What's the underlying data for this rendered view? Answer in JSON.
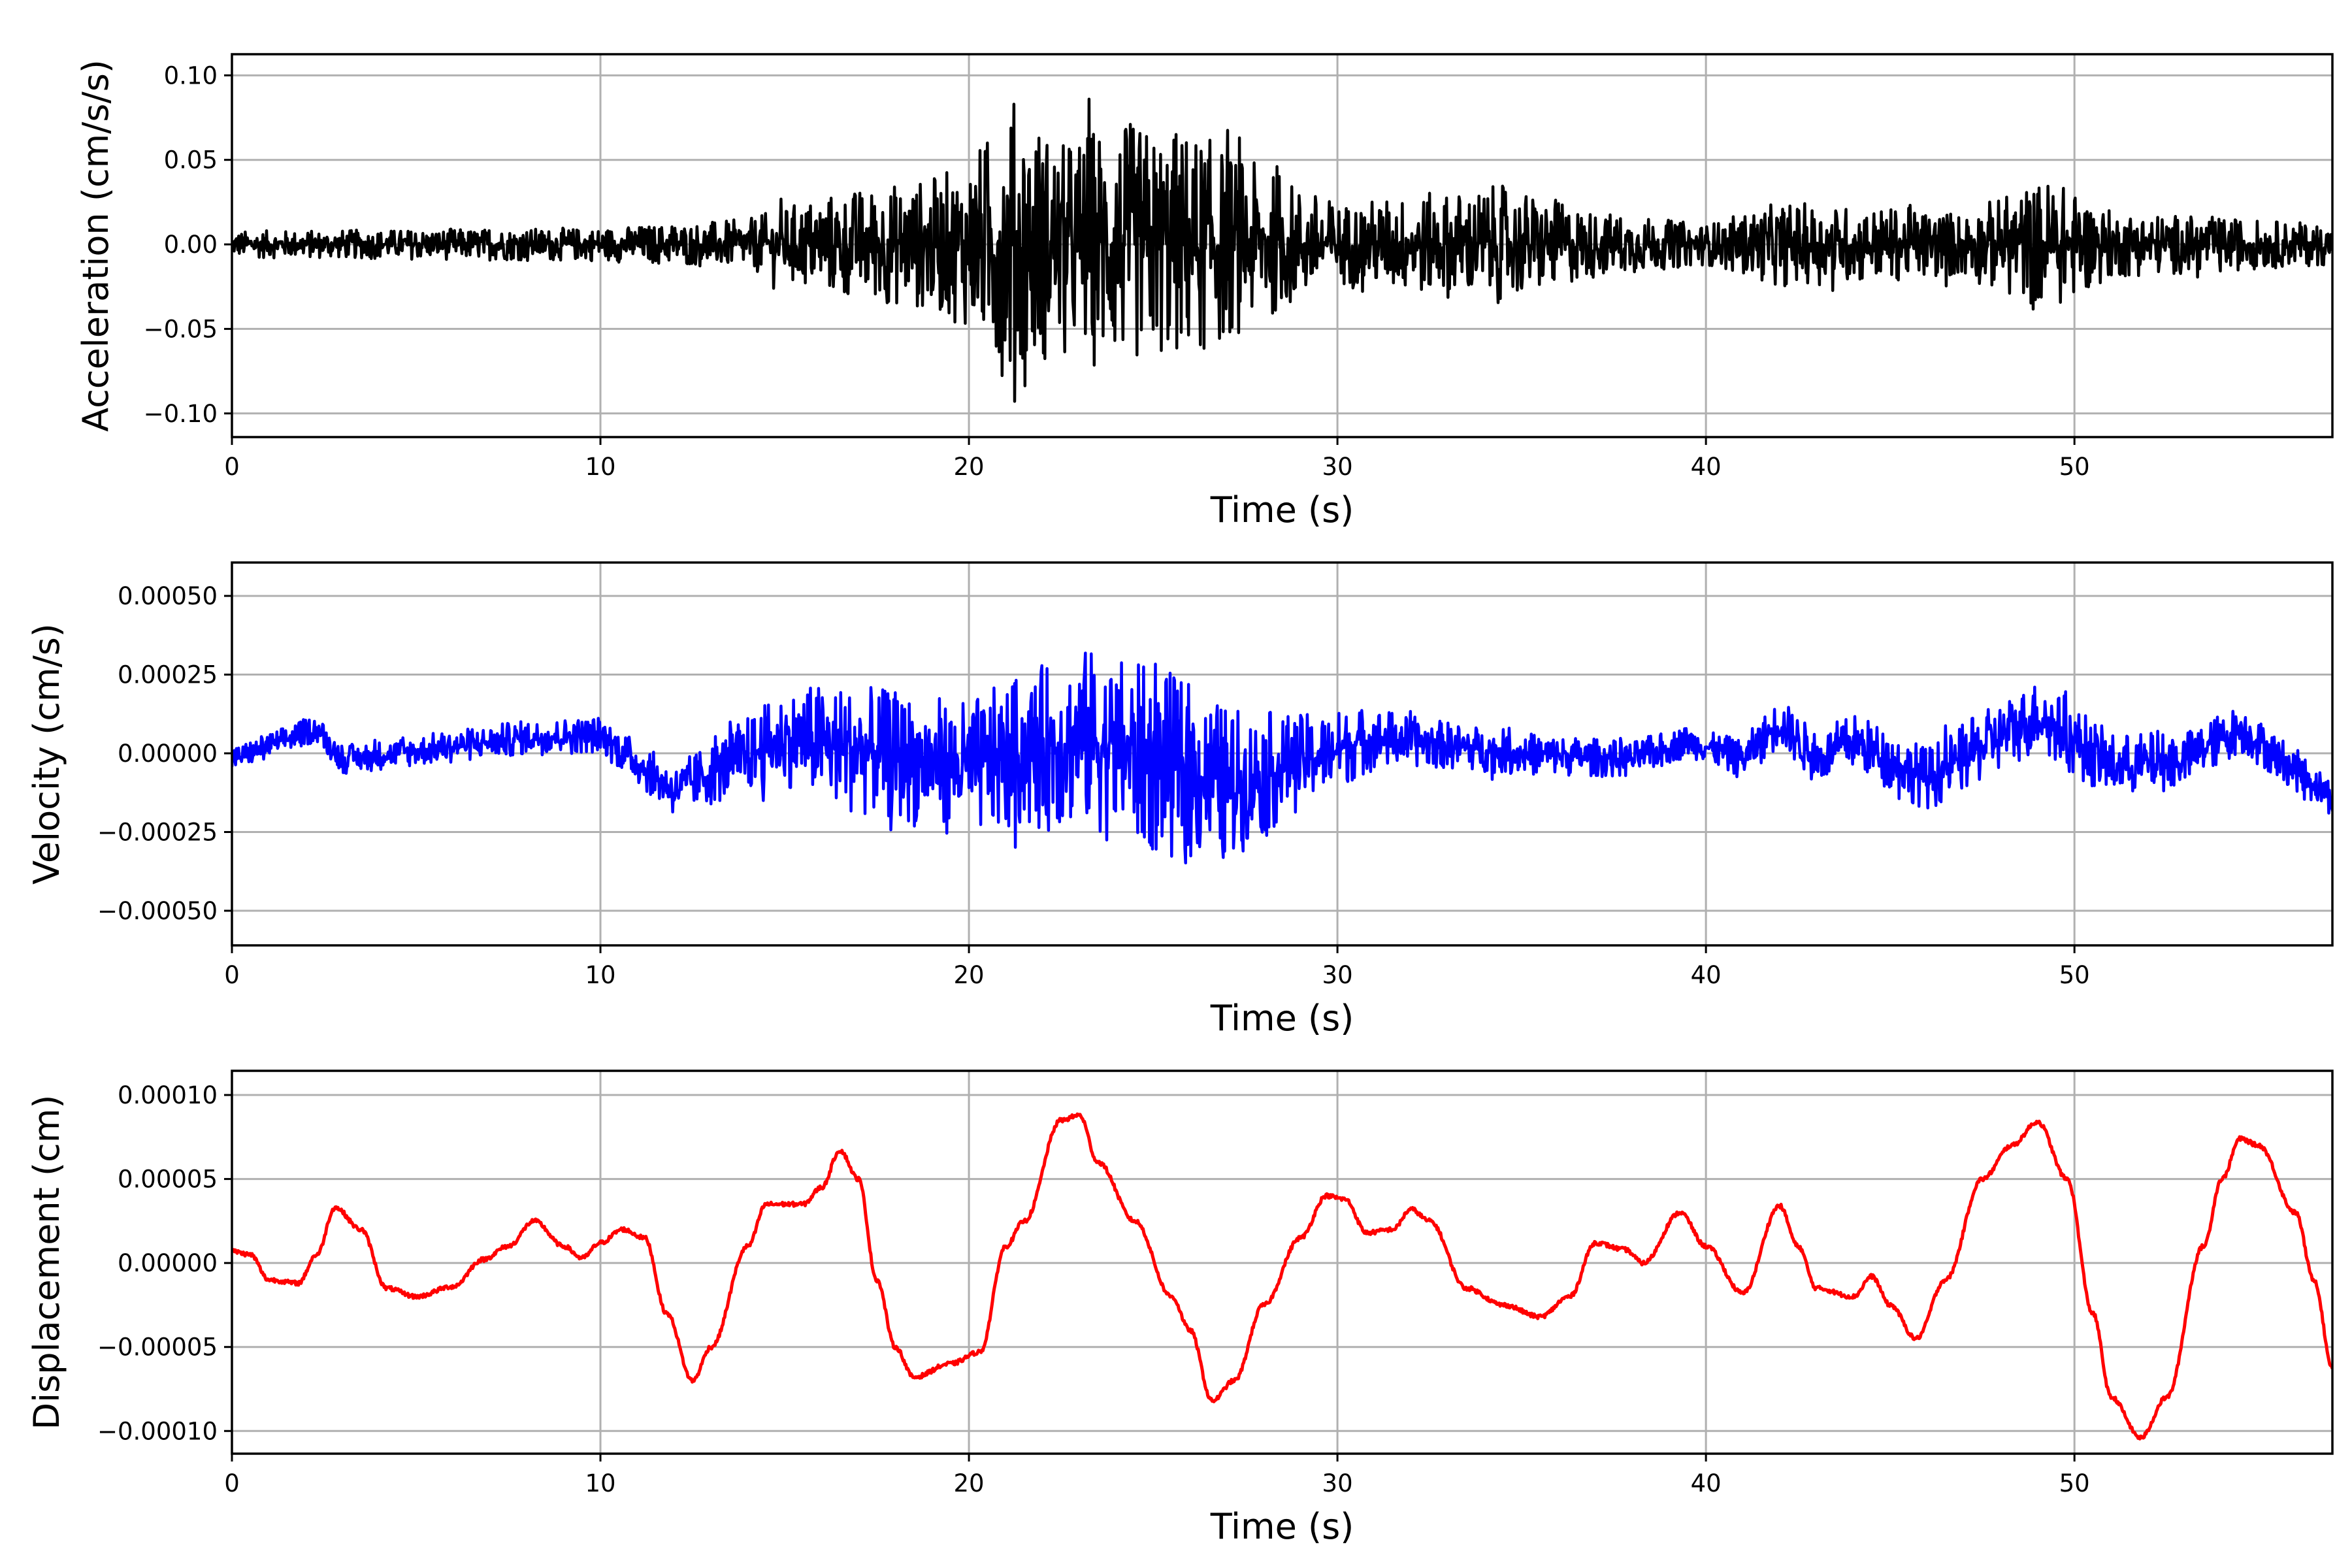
{
  "chart_data": [
    {
      "type": "line",
      "title": "",
      "xlabel": "Time (s)",
      "ylabel": "Acceleration (cm/s/s)",
      "xlim": [
        0,
        57
      ],
      "ylim": [
        -0.114,
        0.1125
      ],
      "grid": true,
      "xticks": [
        0,
        10,
        20,
        30,
        40,
        50
      ],
      "xtick_labels": [
        "0",
        "10",
        "20",
        "30",
        "40",
        "50"
      ],
      "yticks": [
        -0.1,
        -0.05,
        0.0,
        0.05,
        0.1
      ],
      "ytick_labels": [
        "−0.10",
        "−0.05",
        "0.00",
        "0.05",
        "0.10"
      ],
      "color": "#000000",
      "series_name": "acceleration",
      "description_of_values": "dense oscillating record; amplitude envelope (t, peak) approximated",
      "baseline": [
        [
          0,
          0
        ],
        [
          57,
          0
        ]
      ],
      "envelope": [
        [
          0,
          0.008
        ],
        [
          10,
          0.01
        ],
        [
          14,
          0.015
        ],
        [
          16,
          0.03
        ],
        [
          19,
          0.04
        ],
        [
          20,
          0.05
        ],
        [
          21.3,
          0.09
        ],
        [
          22.5,
          0.06
        ],
        [
          23.5,
          0.075
        ],
        [
          25,
          0.07
        ],
        [
          26,
          0.07
        ],
        [
          28,
          0.045
        ],
        [
          30,
          0.025
        ],
        [
          34.5,
          0.035
        ],
        [
          37,
          0.02
        ],
        [
          40,
          0.012
        ],
        [
          42,
          0.025
        ],
        [
          47,
          0.02
        ],
        [
          49.3,
          0.04
        ],
        [
          51,
          0.02
        ],
        [
          57,
          0.012
        ]
      ]
    },
    {
      "type": "line",
      "title": "",
      "xlabel": "Time (s)",
      "ylabel": "Velocity (cm/s)",
      "xlim": [
        0,
        57
      ],
      "ylim": [
        -0.00061,
        0.000606
      ],
      "grid": true,
      "xticks": [
        0,
        10,
        20,
        30,
        40,
        50
      ],
      "xtick_labels": [
        "0",
        "10",
        "20",
        "30",
        "40",
        "50"
      ],
      "yticks": [
        -0.0005,
        -0.00025,
        0.0,
        0.00025,
        0.0005
      ],
      "ytick_labels": [
        "−0.00050",
        "−0.00025",
        "0.00000",
        "0.00025",
        "0.00050"
      ],
      "color": "#0000ff",
      "series_name": "velocity",
      "baseline": [
        [
          0,
          -2e-05
        ],
        [
          2.3,
          8e-05
        ],
        [
          3,
          -2e-05
        ],
        [
          8,
          5e-05
        ],
        [
          10,
          6e-05
        ],
        [
          12,
          -0.00012
        ],
        [
          15,
          5e-05
        ],
        [
          20,
          -5e-05
        ],
        [
          23,
          5e-05
        ],
        [
          27,
          -0.0001
        ],
        [
          31,
          5e-05
        ],
        [
          35,
          0
        ],
        [
          38,
          -2e-05
        ],
        [
          39.5,
          4e-05
        ],
        [
          41,
          -2e-05
        ],
        [
          42,
          0.0001
        ],
        [
          43,
          -2e-05
        ],
        [
          44,
          4e-05
        ],
        [
          46,
          -8e-05
        ],
        [
          49,
          0.00012
        ],
        [
          51,
          -4e-05
        ],
        [
          53,
          -2e-05
        ],
        [
          54.5,
          8e-05
        ],
        [
          57,
          -0.00014
        ]
      ],
      "envelope": [
        [
          0,
          4e-05
        ],
        [
          10,
          6e-05
        ],
        [
          12,
          8e-05
        ],
        [
          15,
          0.00015
        ],
        [
          16,
          0.0002
        ],
        [
          20,
          0.00022
        ],
        [
          23.5,
          0.0003
        ],
        [
          26,
          0.0003
        ],
        [
          29,
          0.00015
        ],
        [
          32,
          8e-05
        ],
        [
          40,
          5e-05
        ],
        [
          42,
          8e-05
        ],
        [
          49,
          0.00012
        ],
        [
          57,
          6e-05
        ]
      ]
    },
    {
      "type": "line",
      "title": "",
      "xlabel": "Time (s)",
      "ylabel": "Displacement (cm)",
      "xlim": [
        0,
        57
      ],
      "ylim": [
        -0.0001135,
        0.0001144
      ],
      "grid": true,
      "xticks": [
        0,
        10,
        20,
        30,
        40,
        50
      ],
      "xtick_labels": [
        "0",
        "10",
        "20",
        "30",
        "40",
        "50"
      ],
      "yticks": [
        -0.0001,
        -5e-05,
        0.0,
        5e-05,
        0.0001
      ],
      "ytick_labels": [
        "−0.00010",
        "−0.00005",
        "0.00000",
        "0.00005",
        "0.00010"
      ],
      "color": "#ff0000",
      "series_name": "displacement",
      "points": [
        [
          0,
          7e-06
        ],
        [
          0.5,
          5e-06
        ],
        [
          1,
          -1e-05
        ],
        [
          1.8,
          -1.2e-05
        ],
        [
          2.3,
          5e-06
        ],
        [
          2.8,
          3.3e-05
        ],
        [
          3.5,
          2e-05
        ],
        [
          4.2,
          -1.5e-05
        ],
        [
          5,
          -2e-05
        ],
        [
          6,
          -1.4e-05
        ],
        [
          6.8,
          2e-06
        ],
        [
          7.5,
          1e-05
        ],
        [
          8.2,
          2.5e-05
        ],
        [
          9,
          1e-05
        ],
        [
          9.5,
          3e-06
        ],
        [
          10,
          1.2e-05
        ],
        [
          10.6,
          2e-05
        ],
        [
          11.2,
          1.5e-05
        ],
        [
          11.8,
          -3e-05
        ],
        [
          12.5,
          -7e-05
        ],
        [
          13,
          -5e-05
        ],
        [
          14,
          1e-05
        ],
        [
          14.5,
          3.5e-05
        ],
        [
          15.5,
          3.5e-05
        ],
        [
          16,
          4.5e-05
        ],
        [
          16.5,
          6.7e-05
        ],
        [
          17,
          5e-05
        ],
        [
          17.5,
          -1e-05
        ],
        [
          18,
          -5e-05
        ],
        [
          18.5,
          -6.8e-05
        ],
        [
          19.5,
          -6e-05
        ],
        [
          20.3,
          -5.3e-05
        ],
        [
          21,
          1e-05
        ],
        [
          21.5,
          2.5e-05
        ],
        [
          22.5,
          8.5e-05
        ],
        [
          23,
          8.8e-05
        ],
        [
          23.5,
          6e-05
        ],
        [
          24.5,
          2.5e-05
        ],
        [
          25.5,
          -2e-05
        ],
        [
          26,
          -4e-05
        ],
        [
          26.6,
          -8.2e-05
        ],
        [
          27.2,
          -7e-05
        ],
        [
          28,
          -2.5e-05
        ],
        [
          29,
          1.5e-05
        ],
        [
          29.7,
          4e-05
        ],
        [
          30.2,
          3.8e-05
        ],
        [
          30.8,
          1.8e-05
        ],
        [
          31.5,
          2e-05
        ],
        [
          32,
          3.2e-05
        ],
        [
          32.5,
          2.5e-05
        ],
        [
          33.5,
          -1.5e-05
        ],
        [
          34.5,
          -2.5e-05
        ],
        [
          35.5,
          -3.2e-05
        ],
        [
          36.3,
          -2e-05
        ],
        [
          37,
          1.2e-05
        ],
        [
          37.8,
          8e-06
        ],
        [
          38.3,
          0
        ],
        [
          39.3,
          3e-05
        ],
        [
          40,
          1e-05
        ],
        [
          41,
          -1.8e-05
        ],
        [
          42,
          3.4e-05
        ],
        [
          42.5,
          1e-05
        ],
        [
          43,
          -1.5e-05
        ],
        [
          44,
          -2e-05
        ],
        [
          44.5,
          -8e-06
        ],
        [
          45,
          -2.5e-05
        ],
        [
          45.7,
          -4.5e-05
        ],
        [
          46.5,
          -1e-05
        ],
        [
          47.5,
          5e-05
        ],
        [
          48.3,
          7e-05
        ],
        [
          49,
          8.4e-05
        ],
        [
          49.8,
          5e-05
        ],
        [
          50.5,
          -3e-05
        ],
        [
          51,
          -8e-05
        ],
        [
          51.8,
          -0.000104
        ],
        [
          52.5,
          -8e-05
        ],
        [
          53.5,
          1e-05
        ],
        [
          54,
          5e-05
        ],
        [
          54.5,
          7.4e-05
        ],
        [
          55,
          7e-05
        ],
        [
          56,
          3e-05
        ],
        [
          56.5,
          -1e-05
        ],
        [
          57,
          -6.2e-05
        ]
      ]
    }
  ]
}
